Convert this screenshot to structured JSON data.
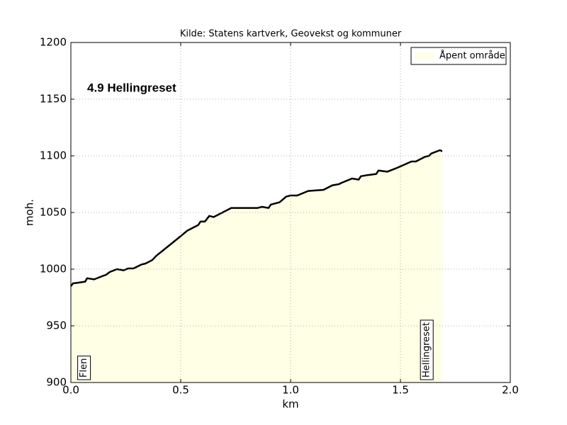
{
  "chart_data": {
    "type": "area",
    "title": "Kilde: Statens kartverk, Geovekst og kommuner",
    "inner_title": "4.9 Hellingreset",
    "xlabel": "km",
    "ylabel": "moh.",
    "xlim": [
      0,
      2.0
    ],
    "ylim": [
      900,
      1200
    ],
    "xticks": [
      {
        "value": 0,
        "label": "0.0"
      },
      0.5,
      {
        "value": 1,
        "label": "1.0"
      },
      1.5,
      {
        "value": 2,
        "label": "2.0"
      }
    ],
    "yticks": [
      900,
      950,
      1000,
      1050,
      1100,
      1150,
      1200
    ],
    "grid": true,
    "legend": "upper right",
    "x": [
      0,
      0.01,
      0.03,
      0.065,
      0.074,
      0.106,
      0.145,
      0.16,
      0.177,
      0.21,
      0.24,
      0.26,
      0.285,
      0.32,
      0.34,
      0.37,
      0.39,
      0.435,
      0.48,
      0.53,
      0.58,
      0.59,
      0.61,
      0.63,
      0.65,
      0.69,
      0.73,
      0.79,
      0.82,
      0.85,
      0.87,
      0.9,
      0.91,
      0.95,
      0.98,
      1.0,
      1.03,
      1.08,
      1.15,
      1.19,
      1.22,
      1.23,
      1.28,
      1.31,
      1.32,
      1.35,
      1.39,
      1.4,
      1.44,
      1.48,
      1.55,
      1.57,
      1.61,
      1.63,
      1.64,
      1.68,
      1.69
    ],
    "series": [
      {
        "name": "Åpent område",
        "color": "#ffffe6",
        "line_color": "#000000",
        "values": [
          985,
          987.5,
          988,
          989,
          992,
          991,
          994,
          995,
          997.5,
          1000,
          999,
          1000.6,
          1000.6,
          1004,
          1005,
          1008,
          1012,
          1019,
          1026,
          1034,
          1039,
          1042,
          1042,
          1047,
          1046,
          1050,
          1054,
          1054,
          1054,
          1054,
          1055,
          1054,
          1057,
          1059,
          1064,
          1065,
          1065,
          1069,
          1070,
          1074,
          1075,
          1076,
          1080,
          1079,
          1082,
          1083,
          1084,
          1087,
          1086,
          1089,
          1095,
          1095,
          1099,
          1100,
          1102,
          1105,
          1104
        ]
      }
    ],
    "annotations": [
      {
        "text": "Flen",
        "x": 0.06
      },
      {
        "text": "Hellingreset",
        "x": 1.62
      }
    ]
  }
}
